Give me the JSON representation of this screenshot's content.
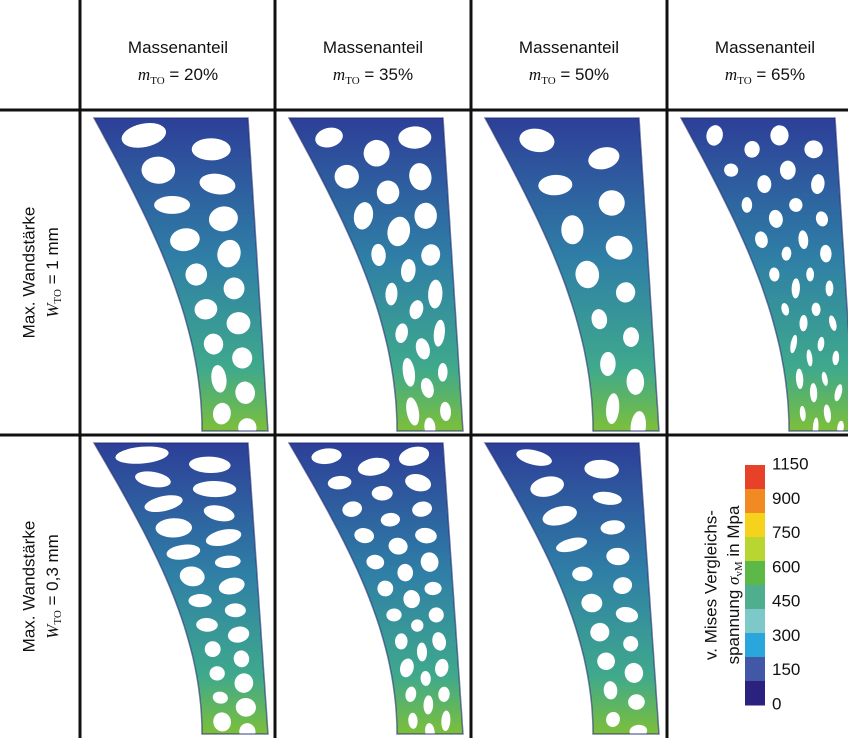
{
  "columns": [
    {
      "title": "Massenanteil",
      "symbol": "m",
      "subscript": "TO",
      "value": " = 20%"
    },
    {
      "title": "Massenanteil",
      "symbol": "m",
      "subscript": "TO",
      "value": " = 35%"
    },
    {
      "title": "Massenanteil",
      "symbol": "m",
      "subscript": "TO",
      "value": " = 50%"
    },
    {
      "title": "Massenanteil",
      "symbol": "m",
      "subscript": "TO",
      "value": " = 65%"
    }
  ],
  "rows": [
    {
      "title": "Max. Wandstärke",
      "symbol": "W",
      "subscript": "TO",
      "value": " = 1 mm"
    },
    {
      "title": "Max. Wandstärke",
      "symbol": "W",
      "subscript": "TO",
      "value": " = 0,3 mm"
    }
  ],
  "colorbar": {
    "line1": "v. Mises Vergleichs-",
    "line2_pre": "spannung ",
    "symbol": "σ",
    "subscript": "vM",
    "line2_post": " in Mpa",
    "ticks": [
      1150,
      900,
      750,
      600,
      450,
      300,
      150,
      0
    ],
    "colors": [
      "#e8412a",
      "#f28a24",
      "#f5d21c",
      "#b9d532",
      "#5cb847",
      "#4fae8e",
      "#7ec8c9",
      "#2aa6dc",
      "#4257a6",
      "#2b2280"
    ]
  }
}
